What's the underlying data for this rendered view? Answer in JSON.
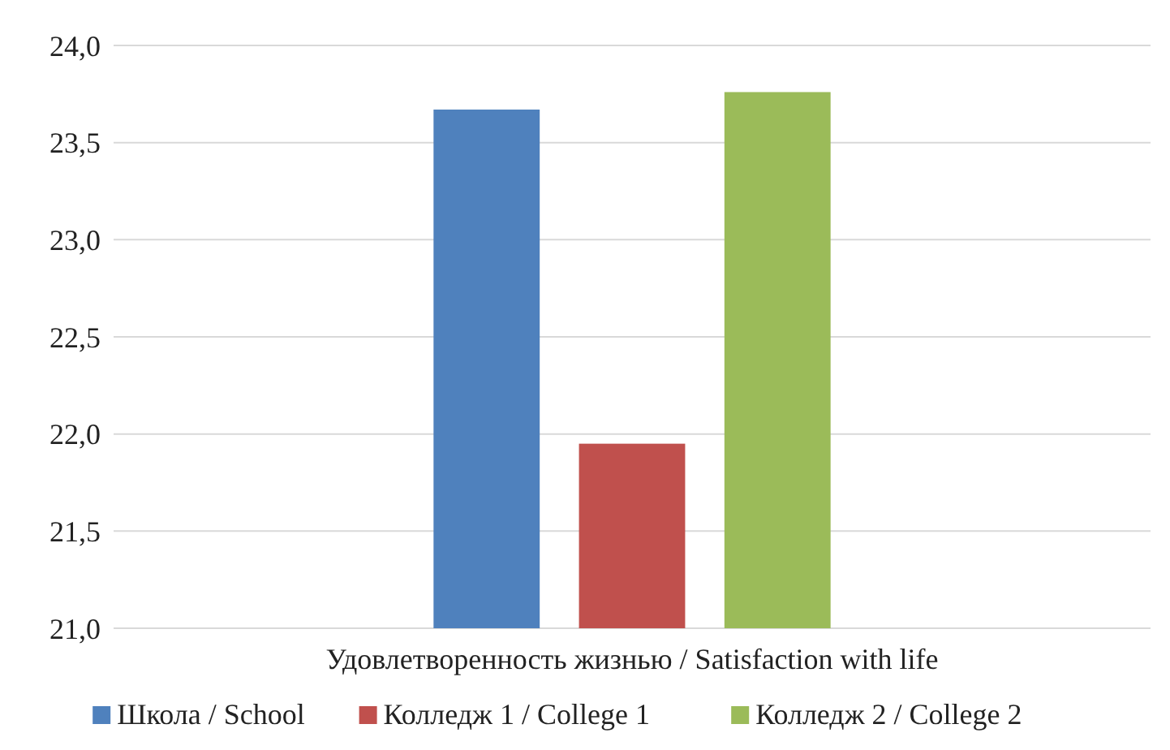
{
  "chart_data": {
    "type": "bar",
    "categories": [
      "Удовлетворенность жизнью / Satisfaction with life"
    ],
    "series": [
      {
        "name": "Школа / School",
        "color": "#4f81bd",
        "values": [
          23.67
        ]
      },
      {
        "name": "Колледж 1 / College 1",
        "color": "#c0504d",
        "values": [
          21.95
        ]
      },
      {
        "name": "Колледж 2 / College 2",
        "color": "#9bbb59",
        "values": [
          23.76
        ]
      }
    ],
    "ylim": [
      21,
      24
    ],
    "yticks": [
      {
        "value": 21,
        "label": "21,0"
      },
      {
        "value": 21.5,
        "label": "21,5"
      },
      {
        "value": 22,
        "label": "22,0"
      },
      {
        "value": 22.5,
        "label": "22,5"
      },
      {
        "value": 23,
        "label": "23,0"
      },
      {
        "value": 23.5,
        "label": "23,5"
      },
      {
        "value": 24,
        "label": "24,0"
      }
    ],
    "grid": "y",
    "legend": "bottom"
  }
}
